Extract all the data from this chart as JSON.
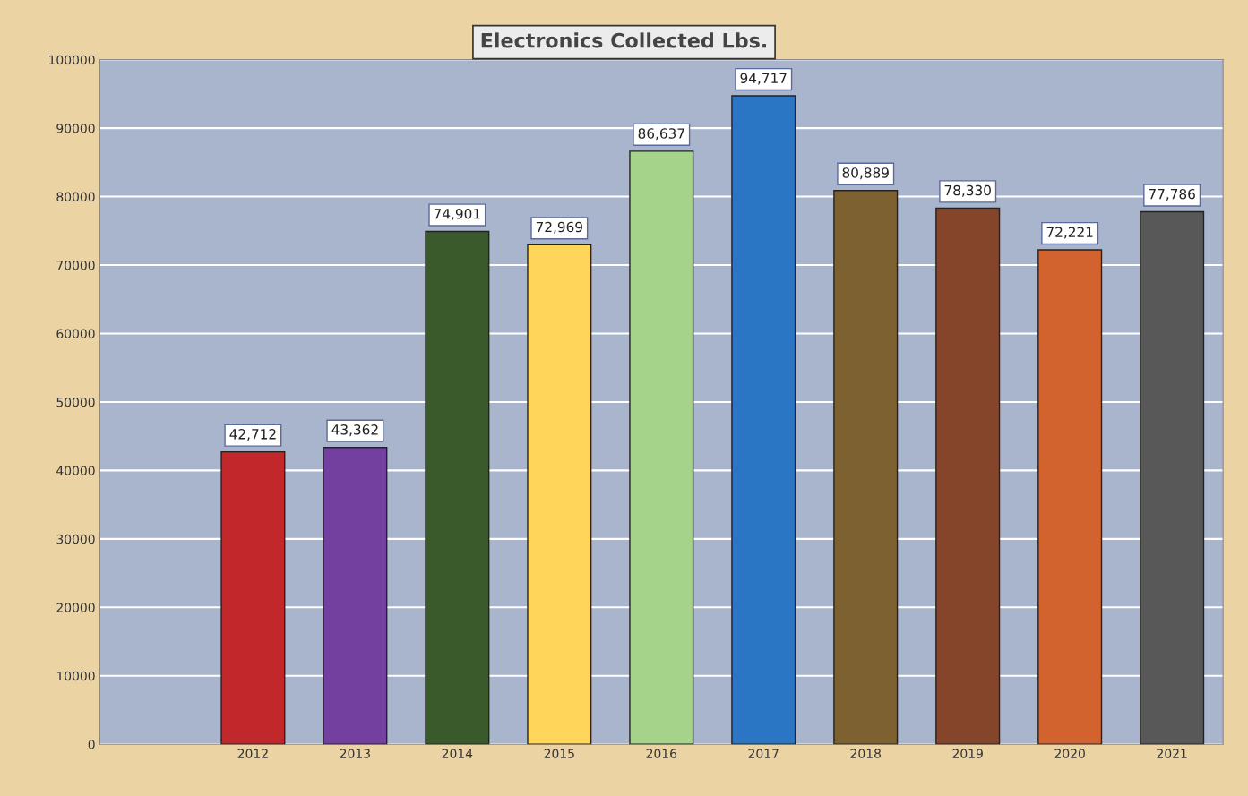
{
  "chart_data": {
    "type": "bar",
    "title": "Electronics Collected Lbs.",
    "categories": [
      null,
      "2012",
      "2013",
      "2014",
      "2015",
      "2016",
      "2017",
      "2018",
      "2019",
      "2020",
      "2021"
    ],
    "values": [
      null,
      42712,
      43362,
      74901,
      72969,
      86637,
      94717,
      80889,
      78330,
      72221,
      77786
    ],
    "colors": [
      "#a9b5cc",
      "#c0282c",
      "#7340a0",
      "#3a5a2c",
      "#ffd55a",
      "#a6d38a",
      "#2a75c4",
      "#7e6131",
      "#84452a",
      "#d2632e",
      "#585858"
    ],
    "value_labels": [
      null,
      "42,712",
      "43,362",
      "74,901",
      "72,969",
      "86,637",
      "94,717",
      "80,889",
      "78,330",
      "72,221",
      "77,786"
    ],
    "ylim": [
      0,
      100000
    ],
    "yticks": [
      0,
      10000,
      20000,
      30000,
      40000,
      50000,
      60000,
      70000,
      80000,
      90000,
      100000
    ],
    "grid": "y",
    "legend": false
  }
}
